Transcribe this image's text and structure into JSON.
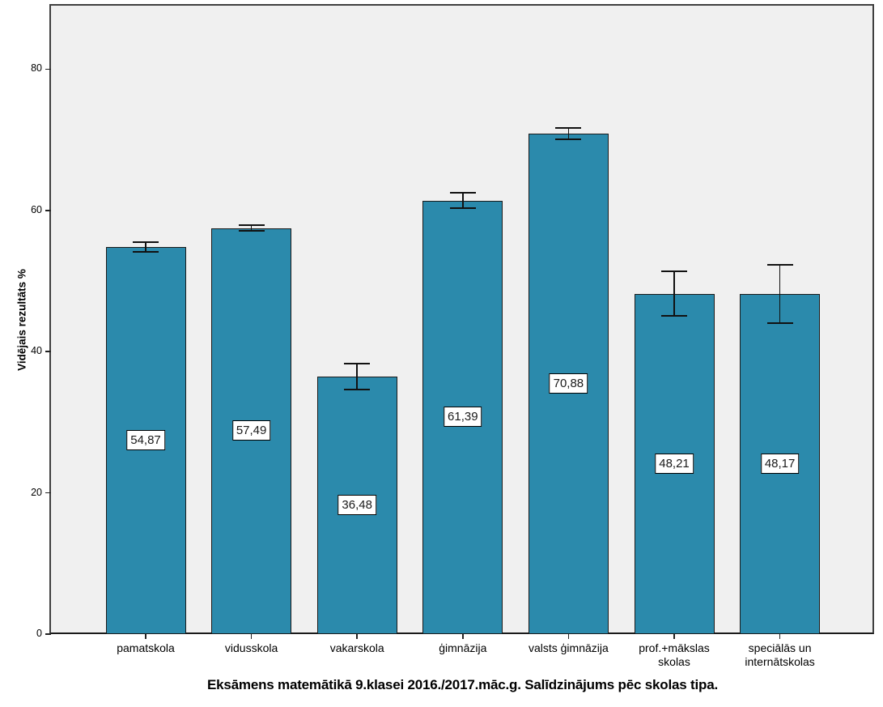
{
  "chart_data": {
    "type": "bar",
    "title": "Eksāmens matemātikā 9.klasei 2016./2017.māc.g. Salīdzinājums pēc skolas tipa.",
    "ylabel": "Vidējais rezultāts %",
    "xlabel": "",
    "categories": [
      "pamatskola",
      "vidusskola",
      "vakarskola",
      "ģimnāzija",
      "valsts ģimnāzija",
      "prof.+mākslas skolas",
      "speciālās un internātskolas"
    ],
    "values": [
      54.87,
      57.49,
      36.48,
      61.39,
      70.88,
      48.21,
      48.17
    ],
    "value_labels": [
      "54,87",
      "57,49",
      "36,48",
      "61,39",
      "70,88",
      "48,21",
      "48,17"
    ],
    "error_bars_plus_minus": [
      0.8,
      0.5,
      1.95,
      1.2,
      0.95,
      3.3,
      4.3
    ],
    "y_ticks": [
      0,
      20,
      40,
      60,
      80
    ],
    "y_tick_labels": [
      "0",
      "20",
      "40",
      "60",
      "80"
    ],
    "ylim": [
      0,
      89
    ],
    "grid": false,
    "legend": "none",
    "bar_color": "#2B8AAC",
    "bar_border_color": "#1a1a1a",
    "error_bar_color": "#111111",
    "plot_bg": "#F0F0F0",
    "value_label_box": {
      "fill": "#ffffff",
      "border": "#000000"
    }
  }
}
